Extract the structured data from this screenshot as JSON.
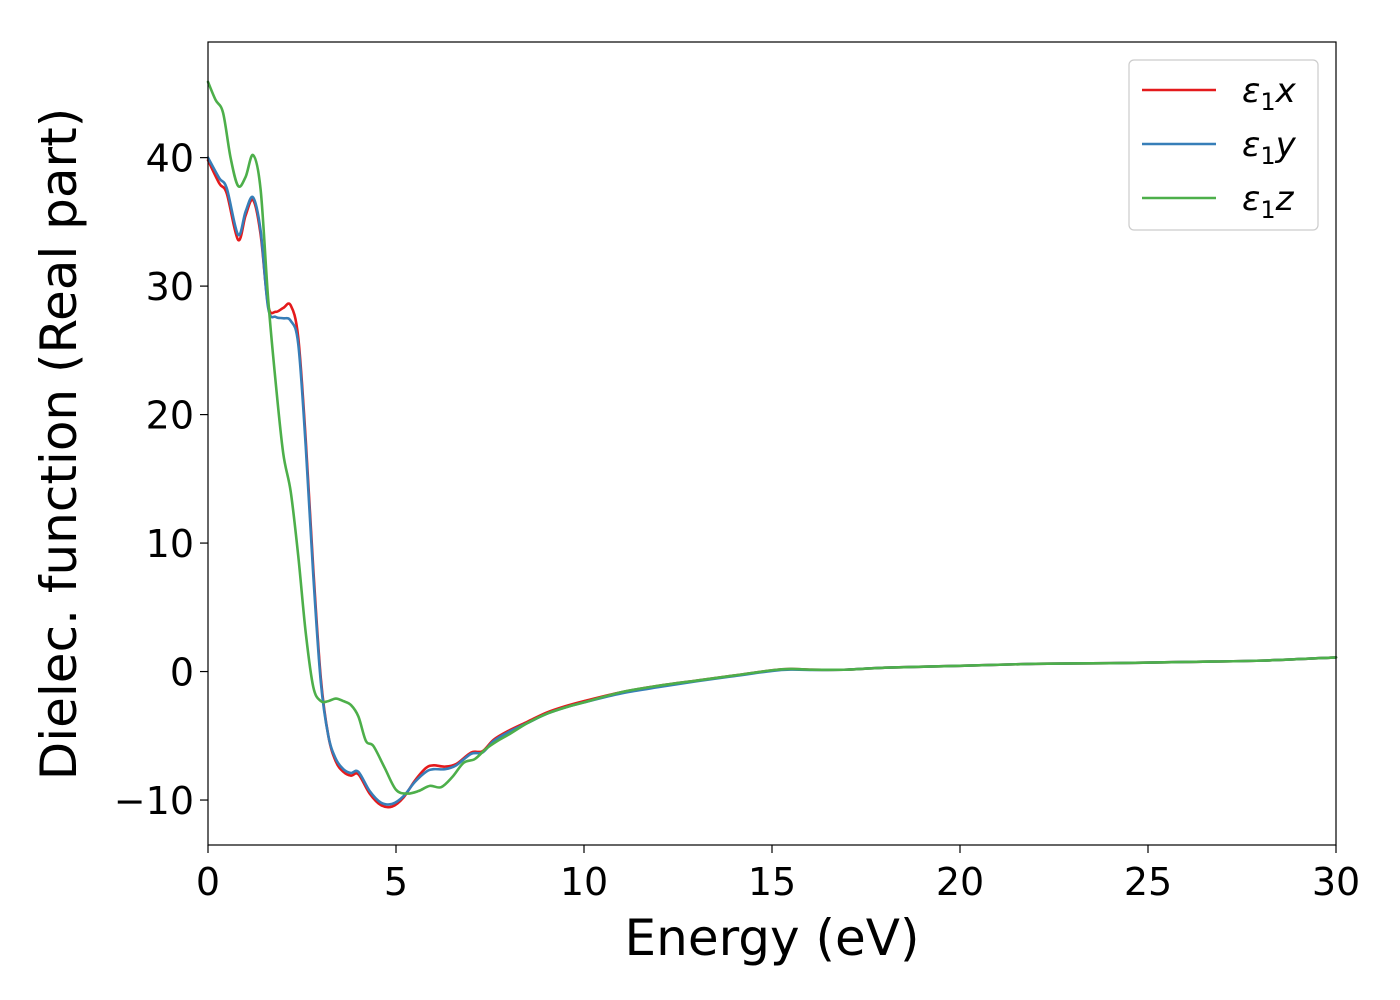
{
  "chart_data": {
    "type": "line",
    "title": "",
    "xlabel": "Energy (eV)",
    "ylabel": "Dielec. function (Real part)",
    "xlim": [
      0,
      30
    ],
    "ylim": [
      -13.5,
      49
    ],
    "xticks": [
      0,
      5,
      10,
      15,
      20,
      25,
      30
    ],
    "yticks": [
      -10,
      0,
      10,
      20,
      30,
      40
    ],
    "xtick_labels": [
      "0",
      "5",
      "10",
      "15",
      "20",
      "25",
      "30"
    ],
    "ytick_labels": [
      "−10",
      "0",
      "10",
      "20",
      "30",
      "40"
    ],
    "grid": false,
    "legend_position": "top-right",
    "series": [
      {
        "name": "ε1x",
        "legend_main": "ε",
        "legend_sub": "1",
        "legend_tail": "x",
        "color": "#e41a1c",
        "x": [
          0,
          0.3,
          0.5,
          0.8,
          1.0,
          1.2,
          1.4,
          1.6,
          1.8,
          2.0,
          2.2,
          2.4,
          2.6,
          2.8,
          3.0,
          3.2,
          3.4,
          3.6,
          3.8,
          4.0,
          4.3,
          4.6,
          4.9,
          5.2,
          5.5,
          5.8,
          6.0,
          6.3,
          6.6,
          7.0,
          7.3,
          7.6,
          8.0,
          8.5,
          9.0,
          9.5,
          10.0,
          11.0,
          12.0,
          13.0,
          14.0,
          15.0,
          15.5,
          16.0,
          17.0,
          18.0,
          20.0,
          22.0,
          24.0,
          26.0,
          28.0,
          30.0
        ],
        "y": [
          39.8,
          38,
          37.2,
          33.6,
          35.5,
          36.7,
          34,
          28.5,
          28,
          28.3,
          28.5,
          26,
          18,
          8,
          -0.5,
          -5,
          -7,
          -7.8,
          -8.1,
          -8,
          -9.5,
          -10.4,
          -10.5,
          -9.8,
          -8.5,
          -7.5,
          -7.3,
          -7.4,
          -7.2,
          -6.3,
          -6.2,
          -5.3,
          -4.6,
          -3.9,
          -3.2,
          -2.7,
          -2.3,
          -1.6,
          -1.1,
          -0.7,
          -0.3,
          0.1,
          0.2,
          0.15,
          0.15,
          0.3,
          0.45,
          0.6,
          0.65,
          0.75,
          0.85,
          1.1
        ]
      },
      {
        "name": "ε1y",
        "legend_main": "ε",
        "legend_sub": "1",
        "legend_tail": "y",
        "color": "#377eb8",
        "x": [
          0,
          0.3,
          0.5,
          0.8,
          1.0,
          1.2,
          1.4,
          1.6,
          1.8,
          2.0,
          2.2,
          2.4,
          2.6,
          2.8,
          3.0,
          3.2,
          3.4,
          3.6,
          3.8,
          4.0,
          4.3,
          4.6,
          4.9,
          5.2,
          5.5,
          5.8,
          6.0,
          6.3,
          6.6,
          7.0,
          7.3,
          7.6,
          8.0,
          8.5,
          9.0,
          9.5,
          10.0,
          11.0,
          12.0,
          13.0,
          14.0,
          15.0,
          15.5,
          16.0,
          17.0,
          18.0,
          20.0,
          22.0,
          24.0,
          26.0,
          28.0,
          30.0
        ],
        "y": [
          40,
          38.4,
          37.6,
          34,
          35.8,
          36.9,
          34.3,
          28.3,
          27.6,
          27.5,
          27.3,
          25.5,
          17.5,
          7.5,
          -0.8,
          -5,
          -6.8,
          -7.6,
          -7.9,
          -7.8,
          -9.3,
          -10.2,
          -10.3,
          -9.7,
          -8.6,
          -7.8,
          -7.6,
          -7.6,
          -7.3,
          -6.4,
          -6.3,
          -5.4,
          -4.7,
          -4,
          -3.3,
          -2.8,
          -2.4,
          -1.7,
          -1.2,
          -0.75,
          -0.35,
          0.05,
          0.15,
          0.12,
          0.15,
          0.3,
          0.45,
          0.6,
          0.65,
          0.75,
          0.85,
          1.1
        ]
      },
      {
        "name": "ε1z",
        "legend_main": "ε",
        "legend_sub": "1",
        "legend_tail": "z",
        "color": "#4daf4a",
        "x": [
          0,
          0.2,
          0.4,
          0.6,
          0.8,
          1.0,
          1.2,
          1.4,
          1.6,
          1.8,
          2.0,
          2.2,
          2.4,
          2.6,
          2.8,
          3.0,
          3.2,
          3.4,
          3.6,
          3.8,
          4.0,
          4.2,
          4.4,
          4.7,
          5.0,
          5.3,
          5.6,
          5.9,
          6.2,
          6.5,
          6.8,
          7.1,
          7.4,
          7.7,
          8.0,
          8.5,
          9.0,
          9.5,
          10.0,
          11.0,
          12.0,
          13.0,
          14.0,
          15.0,
          15.5,
          16.0,
          17.0,
          18.0,
          20.0,
          22.0,
          24.0,
          26.0,
          28.0,
          30.0
        ],
        "y": [
          45.9,
          44.5,
          43.5,
          40,
          37.8,
          38.5,
          40.2,
          37.5,
          29,
          22.5,
          17,
          14,
          9,
          3,
          -1.2,
          -2.3,
          -2.3,
          -2.1,
          -2.3,
          -2.6,
          -3.5,
          -5.4,
          -5.8,
          -7.5,
          -9.2,
          -9.5,
          -9.3,
          -8.9,
          -9,
          -8.2,
          -7.1,
          -6.8,
          -6,
          -5.4,
          -4.9,
          -4,
          -3.3,
          -2.8,
          -2.4,
          -1.6,
          -1.1,
          -0.7,
          -0.3,
          0.1,
          0.2,
          0.15,
          0.15,
          0.3,
          0.45,
          0.6,
          0.65,
          0.75,
          0.85,
          1.1
        ]
      }
    ]
  }
}
